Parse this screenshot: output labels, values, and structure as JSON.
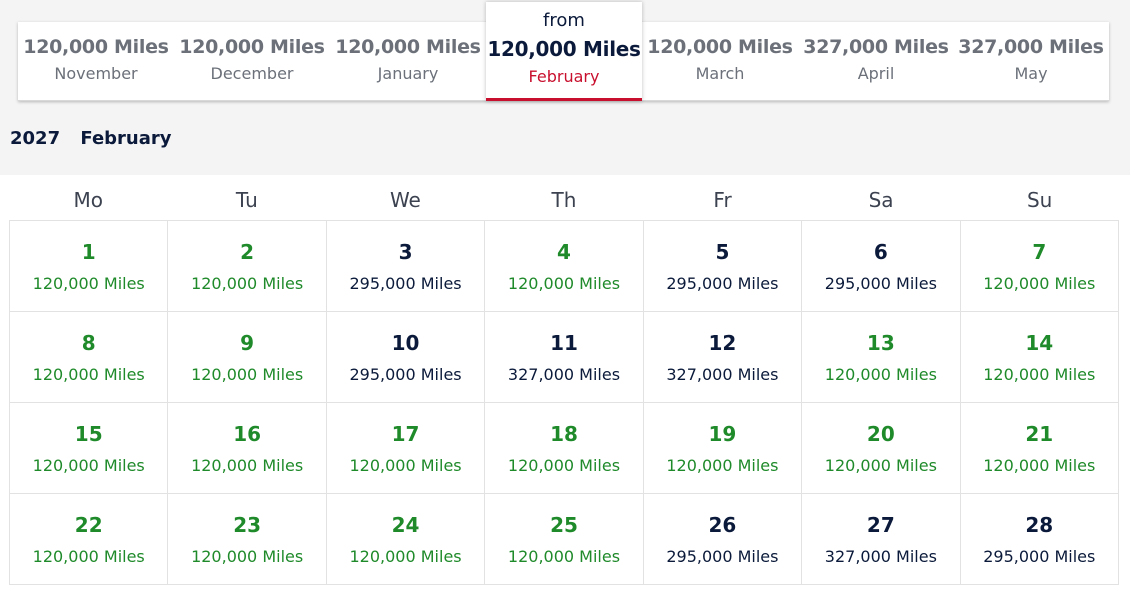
{
  "colors": {
    "saver": "#1f8a2a",
    "standard": "#0b1a3a",
    "accent": "#c8102e"
  },
  "months": [
    {
      "price": "120,000 Miles",
      "name": "November"
    },
    {
      "price": "120,000 Miles",
      "name": "December"
    },
    {
      "price": "120,000 Miles",
      "name": "January"
    },
    {
      "price": "120,000 Miles",
      "name": "February",
      "from": "from",
      "active": true
    },
    {
      "price": "120,000 Miles",
      "name": "March"
    },
    {
      "price": "327,000 Miles",
      "name": "April"
    },
    {
      "price": "327,000 Miles",
      "name": "May"
    }
  ],
  "period": {
    "year": "2027",
    "month": "February"
  },
  "weekdays": [
    "Mo",
    "Tu",
    "We",
    "Th",
    "Fr",
    "Sa",
    "Su"
  ],
  "days": [
    {
      "day": "1",
      "miles": "120,000 Miles",
      "saver": true
    },
    {
      "day": "2",
      "miles": "120,000 Miles",
      "saver": true
    },
    {
      "day": "3",
      "miles": "295,000 Miles",
      "saver": false
    },
    {
      "day": "4",
      "miles": "120,000 Miles",
      "saver": true
    },
    {
      "day": "5",
      "miles": "295,000 Miles",
      "saver": false
    },
    {
      "day": "6",
      "miles": "295,000 Miles",
      "saver": false
    },
    {
      "day": "7",
      "miles": "120,000 Miles",
      "saver": true
    },
    {
      "day": "8",
      "miles": "120,000 Miles",
      "saver": true
    },
    {
      "day": "9",
      "miles": "120,000 Miles",
      "saver": true
    },
    {
      "day": "10",
      "miles": "295,000 Miles",
      "saver": false
    },
    {
      "day": "11",
      "miles": "327,000 Miles",
      "saver": false
    },
    {
      "day": "12",
      "miles": "327,000 Miles",
      "saver": false
    },
    {
      "day": "13",
      "miles": "120,000 Miles",
      "saver": true
    },
    {
      "day": "14",
      "miles": "120,000 Miles",
      "saver": true
    },
    {
      "day": "15",
      "miles": "120,000 Miles",
      "saver": true
    },
    {
      "day": "16",
      "miles": "120,000 Miles",
      "saver": true
    },
    {
      "day": "17",
      "miles": "120,000 Miles",
      "saver": true
    },
    {
      "day": "18",
      "miles": "120,000 Miles",
      "saver": true
    },
    {
      "day": "19",
      "miles": "120,000 Miles",
      "saver": true
    },
    {
      "day": "20",
      "miles": "120,000 Miles",
      "saver": true
    },
    {
      "day": "21",
      "miles": "120,000 Miles",
      "saver": true
    },
    {
      "day": "22",
      "miles": "120,000 Miles",
      "saver": true
    },
    {
      "day": "23",
      "miles": "120,000 Miles",
      "saver": true
    },
    {
      "day": "24",
      "miles": "120,000 Miles",
      "saver": true
    },
    {
      "day": "25",
      "miles": "120,000 Miles",
      "saver": true
    },
    {
      "day": "26",
      "miles": "295,000 Miles",
      "saver": false
    },
    {
      "day": "27",
      "miles": "327,000 Miles",
      "saver": false
    },
    {
      "day": "28",
      "miles": "295,000 Miles",
      "saver": false
    }
  ]
}
